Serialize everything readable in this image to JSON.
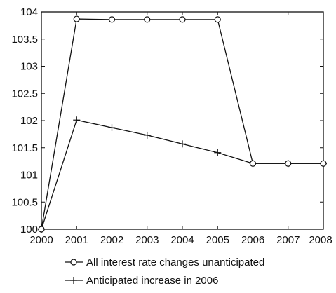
{
  "chart_data": {
    "type": "line",
    "title": "",
    "xlabel": "",
    "ylabel": "",
    "categories": [
      2000,
      2001,
      2002,
      2003,
      2004,
      2005,
      2006,
      2007,
      2008
    ],
    "ylim": [
      100,
      104
    ],
    "y_ticks": [
      100,
      100.5,
      101,
      101.5,
      102,
      102.5,
      103,
      103.5,
      104
    ],
    "y_tick_labels": [
      "100",
      "100.5",
      "101",
      "101.5",
      "102",
      "102.5",
      "103",
      "103.5",
      "104"
    ],
    "x_tick_labels": [
      "2000",
      "2001",
      "2002",
      "2003",
      "2004",
      "2005",
      "2006",
      "2007",
      "2008"
    ],
    "grid": false,
    "legend_position": "bottom",
    "series": [
      {
        "name": "All interest rate changes unanticipated",
        "marker": "circle",
        "color": "#111111",
        "values": [
          100,
          103.87,
          103.86,
          103.86,
          103.86,
          103.86,
          101.21,
          101.21,
          101.21
        ]
      },
      {
        "name": "Anticipated increase in 2006",
        "marker": "plus",
        "color": "#111111",
        "values": [
          100,
          102.01,
          101.87,
          101.73,
          101.57,
          101.41,
          101.21,
          101.21,
          101.21
        ]
      }
    ]
  }
}
